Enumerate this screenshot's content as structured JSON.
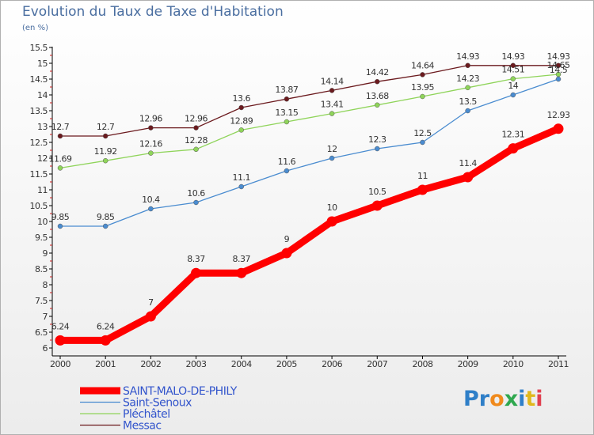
{
  "header": {
    "title": "Evolution du Taux de Taxe d'Habitation",
    "unit": "(en %)"
  },
  "logo": {
    "letters": [
      {
        "ch": "P",
        "color": "#2f7fc8"
      },
      {
        "ch": "r",
        "color": "#2f7fc8"
      },
      {
        "ch": "o",
        "color": "#f08a1c"
      },
      {
        "ch": "x",
        "color": "#2fa84f"
      },
      {
        "ch": "i",
        "color": "#2f7fc8"
      },
      {
        "ch": "t",
        "color": "#e0b81c"
      },
      {
        "ch": "i",
        "color": "#e04050"
      }
    ]
  },
  "chart_data": {
    "type": "line",
    "x": [
      "2000",
      "2001",
      "2002",
      "2003",
      "2004",
      "2005",
      "2006",
      "2007",
      "2008",
      "2009",
      "2010",
      "2011"
    ],
    "ylim": [
      6,
      15.5
    ],
    "yticks": [
      "6",
      "6.5",
      "7",
      "7.5",
      "8",
      "8.5",
      "9",
      "9.5",
      "10",
      "10.5",
      "11",
      "11.5",
      "12",
      "12.5",
      "13",
      "13.5",
      "14",
      "14.5",
      "15",
      "15.5"
    ],
    "grid": false,
    "legend_position": "bottom-left",
    "series": [
      {
        "name": "Messac",
        "color": "#6b1a1e",
        "values": [
          12.7,
          12.7,
          12.96,
          12.96,
          13.6,
          13.87,
          14.14,
          14.42,
          14.64,
          14.93,
          14.93,
          14.93
        ],
        "labels": [
          "12.7",
          "12.7",
          "12.96",
          "12.96",
          "13.6",
          "13.87",
          "14.14",
          "14.42",
          "14.64",
          "14.93",
          "14.93",
          "14.93"
        ]
      },
      {
        "name": "Pléchâtel",
        "color": "#8fd45a",
        "values": [
          11.69,
          11.92,
          12.16,
          12.28,
          12.89,
          13.15,
          13.41,
          13.68,
          13.95,
          14.23,
          14.51,
          14.65
        ],
        "labels": [
          "11.69",
          "11.92",
          "12.16",
          "12.28",
          "12.89",
          "13.15",
          "13.41",
          "13.68",
          "13.95",
          "14.23",
          "14.51",
          "14.65"
        ]
      },
      {
        "name": "Saint-Senoux",
        "color": "#4a8cd0",
        "values": [
          9.85,
          9.85,
          10.4,
          10.6,
          11.1,
          11.6,
          12,
          12.3,
          12.5,
          13.5,
          14,
          14.5
        ],
        "labels": [
          "9.85",
          "9.85",
          "10.4",
          "10.6",
          "11.1",
          "11.6",
          "12",
          "12.3",
          "12.5",
          "13.5",
          "14",
          "14.5"
        ]
      },
      {
        "name": "SAINT-MALO-DE-PHILY",
        "color": "#ff0000",
        "emphasis": true,
        "values": [
          6.24,
          6.24,
          7,
          8.37,
          8.37,
          9,
          10,
          10.5,
          11,
          11.4,
          12.31,
          12.93
        ],
        "labels": [
          "6.24",
          "6.24",
          "7",
          "8.37",
          "8.37",
          "9",
          "10",
          "10.5",
          "11",
          "11.4",
          "12.31",
          "12.93"
        ]
      }
    ],
    "legend": [
      "SAINT-MALO-DE-PHILY",
      "Saint-Senoux",
      "Pléchâtel",
      "Messac"
    ]
  }
}
